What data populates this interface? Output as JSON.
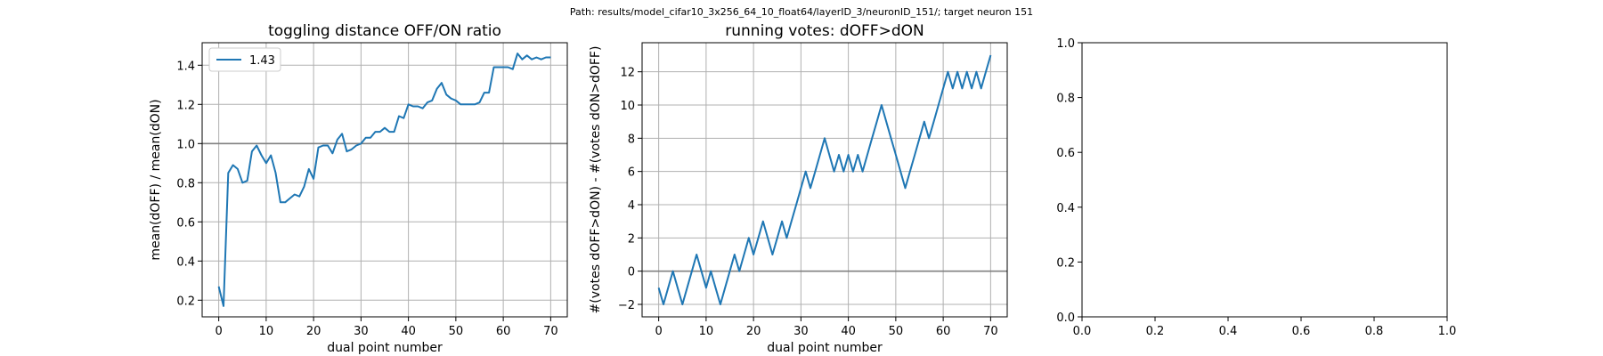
{
  "suptitle": "Path: results/model_cifar10_3x256_64_10_float64/layerID_3/neuronID_151/; target neuron 151",
  "colors": {
    "line": "#1f77b4",
    "grid": "#b0b0b0",
    "hline": "#808080",
    "axes": "#000000"
  },
  "chart_data": [
    {
      "type": "line",
      "title": "toggling distance OFF/ON ratio",
      "xlabel": "dual point number",
      "ylabel": "mean(dOFF) / mean(dON)",
      "xlim": [
        -3.5,
        73.5
      ],
      "ylim": [
        0.115,
        1.515
      ],
      "xticks": [
        0,
        10,
        20,
        30,
        40,
        50,
        60,
        70
      ],
      "xtick_labels": [
        "0",
        "10",
        "20",
        "30",
        "40",
        "50",
        "60",
        "70"
      ],
      "yticks": [
        0.2,
        0.4,
        0.6,
        0.8,
        1.0,
        1.2,
        1.4
      ],
      "ytick_labels": [
        "0.2",
        "0.4",
        "0.6",
        "0.8",
        "1.0",
        "1.2",
        "1.4"
      ],
      "grid": true,
      "hline": 1.0,
      "legend": {
        "position": "upper-left",
        "entries": [
          "1.43"
        ]
      },
      "series": [
        {
          "name": "1.43",
          "x": [
            0,
            1,
            2,
            3,
            4,
            5,
            6,
            7,
            8,
            9,
            10,
            11,
            12,
            13,
            14,
            15,
            16,
            17,
            18,
            19,
            20,
            21,
            22,
            23,
            24,
            25,
            26,
            27,
            28,
            29,
            30,
            31,
            32,
            33,
            34,
            35,
            36,
            37,
            38,
            39,
            40,
            41,
            42,
            43,
            44,
            45,
            46,
            47,
            48,
            49,
            50,
            51,
            52,
            53,
            54,
            55,
            56,
            57,
            58,
            59,
            60,
            61,
            62,
            63,
            64,
            65,
            66,
            67,
            68,
            69,
            70
          ],
          "y": [
            0.27,
            0.17,
            0.85,
            0.89,
            0.87,
            0.8,
            0.81,
            0.96,
            0.99,
            0.94,
            0.9,
            0.94,
            0.85,
            0.7,
            0.7,
            0.72,
            0.74,
            0.73,
            0.78,
            0.87,
            0.82,
            0.98,
            0.99,
            0.99,
            0.95,
            1.02,
            1.05,
            0.96,
            0.97,
            0.99,
            1.0,
            1.03,
            1.03,
            1.06,
            1.06,
            1.08,
            1.06,
            1.06,
            1.14,
            1.13,
            1.2,
            1.19,
            1.19,
            1.18,
            1.21,
            1.22,
            1.28,
            1.31,
            1.25,
            1.23,
            1.22,
            1.2,
            1.2,
            1.2,
            1.2,
            1.21,
            1.26,
            1.26,
            1.39,
            1.39,
            1.39,
            1.39,
            1.38,
            1.46,
            1.43,
            1.45,
            1.43,
            1.44,
            1.43,
            1.44,
            1.44
          ]
        }
      ]
    },
    {
      "type": "line",
      "title": "running votes: dOFF>dON",
      "xlabel": "dual point number",
      "ylabel": "#(votes dOFF>dON) - #(votes dON>dOFF)",
      "xlim": [
        -3.5,
        73.5
      ],
      "ylim": [
        -2.75,
        13.75
      ],
      "xticks": [
        0,
        10,
        20,
        30,
        40,
        50,
        60,
        70
      ],
      "xtick_labels": [
        "0",
        "10",
        "20",
        "30",
        "40",
        "50",
        "60",
        "70"
      ],
      "yticks": [
        -2,
        0,
        2,
        4,
        6,
        8,
        10,
        12
      ],
      "ytick_labels": [
        "−2",
        "0",
        "2",
        "4",
        "6",
        "8",
        "10",
        "12"
      ],
      "grid": true,
      "hline": 0,
      "series": [
        {
          "x": [
            0,
            1,
            2,
            3,
            4,
            5,
            6,
            7,
            8,
            9,
            10,
            11,
            12,
            13,
            14,
            15,
            16,
            17,
            18,
            19,
            20,
            21,
            22,
            23,
            24,
            25,
            26,
            27,
            28,
            29,
            30,
            31,
            32,
            33,
            34,
            35,
            36,
            37,
            38,
            39,
            40,
            41,
            42,
            43,
            44,
            45,
            46,
            47,
            48,
            49,
            50,
            51,
            52,
            53,
            54,
            55,
            56,
            57,
            58,
            59,
            60,
            61,
            62,
            63,
            64,
            65,
            66,
            67,
            68,
            69,
            70
          ],
          "y": [
            -1,
            -2,
            -1,
            0,
            -1,
            -2,
            -1,
            0,
            1,
            0,
            -1,
            0,
            -1,
            -2,
            -1,
            0,
            1,
            0,
            1,
            2,
            1,
            2,
            3,
            2,
            1,
            2,
            3,
            2,
            3,
            4,
            5,
            6,
            5,
            6,
            7,
            8,
            7,
            6,
            7,
            6,
            7,
            6,
            7,
            6,
            7,
            8,
            9,
            10,
            9,
            8,
            7,
            6,
            5,
            6,
            7,
            8,
            9,
            8,
            9,
            10,
            11,
            12,
            11,
            12,
            11,
            12,
            11,
            12,
            11,
            12,
            13
          ]
        }
      ]
    },
    {
      "type": "line",
      "title": "",
      "xlabel": "",
      "ylabel": "",
      "xlim": [
        0,
        1
      ],
      "ylim": [
        0,
        1
      ],
      "xticks": [
        0,
        0.2,
        0.4,
        0.6,
        0.8,
        1.0
      ],
      "xtick_labels": [
        "0.0",
        "0.2",
        "0.4",
        "0.6",
        "0.8",
        "1.0"
      ],
      "yticks": [
        0,
        0.2,
        0.4,
        0.6,
        0.8,
        1.0
      ],
      "ytick_labels": [
        "0.0",
        "0.2",
        "0.4",
        "0.6",
        "0.8",
        "1.0"
      ],
      "grid": false,
      "series": []
    }
  ]
}
